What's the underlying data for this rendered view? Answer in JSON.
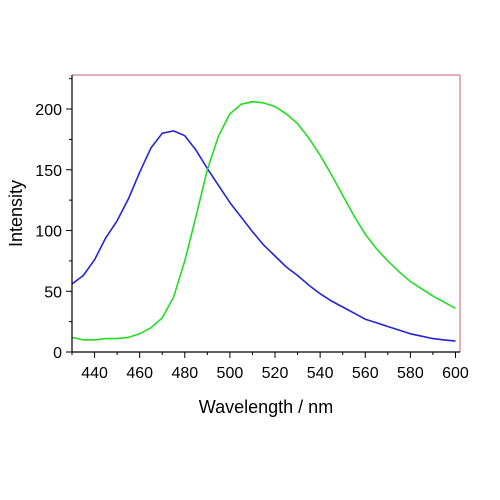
{
  "chart_data": {
    "type": "line",
    "title": "",
    "xlabel": "Wavelength / nm",
    "ylabel": "Intensity",
    "xlim": [
      430,
      602
    ],
    "ylim": [
      0,
      228
    ],
    "xticks": [
      440,
      460,
      480,
      500,
      520,
      540,
      560,
      580,
      600
    ],
    "yticks": [
      0,
      50,
      100,
      150,
      200
    ],
    "grid": false,
    "legend": "none",
    "series": [
      {
        "color": "#2424d6",
        "x": [
          430,
          435,
          440,
          445,
          450,
          455,
          460,
          465,
          470,
          475,
          480,
          485,
          490,
          495,
          500,
          505,
          510,
          515,
          520,
          525,
          530,
          535,
          540,
          545,
          550,
          555,
          560,
          565,
          570,
          575,
          580,
          585,
          590,
          595,
          600
        ],
        "y": [
          56,
          63,
          76,
          94,
          108,
          126,
          148,
          168,
          180,
          182,
          178,
          166,
          151,
          137,
          123,
          111,
          99,
          88,
          79,
          70,
          63,
          55,
          48,
          42,
          37,
          32,
          27,
          24,
          21,
          18,
          15,
          13,
          11,
          10,
          9
        ]
      },
      {
        "color": "#22dd22",
        "x": [
          430,
          435,
          440,
          445,
          450,
          455,
          460,
          465,
          470,
          475,
          480,
          485,
          490,
          495,
          500,
          505,
          510,
          515,
          520,
          525,
          530,
          535,
          540,
          545,
          550,
          555,
          560,
          565,
          570,
          575,
          580,
          585,
          590,
          595,
          600
        ],
        "y": [
          12,
          10,
          10,
          11,
          11,
          12,
          15,
          20,
          28,
          45,
          75,
          112,
          150,
          178,
          196,
          204,
          206,
          205,
          202,
          196,
          188,
          176,
          162,
          146,
          129,
          112,
          97,
          85,
          75,
          66,
          58,
          52,
          46,
          41,
          36
        ]
      }
    ]
  }
}
